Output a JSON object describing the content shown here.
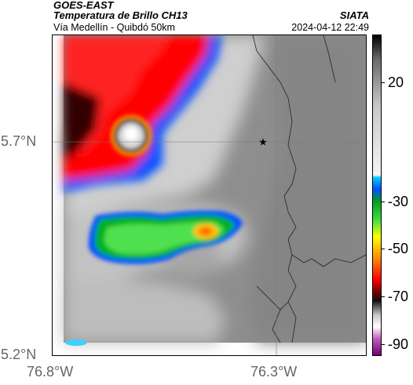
{
  "header": {
    "product": "GOES-EAST",
    "title": "Temperatura de Brillo CH13",
    "subtitle": "Vía Medellín - Quibdó 50km",
    "source": "SIATA",
    "timestamp": "2024-04-12 22:49"
  },
  "map": {
    "lon_range": [
      -76.8,
      -76.1
    ],
    "lat_range": [
      5.2,
      5.95
    ],
    "y_ticks": [
      {
        "label": "5.7°N",
        "lat": 5.7
      },
      {
        "label": "5.2°N",
        "lat": 5.2
      }
    ],
    "x_ticks": [
      {
        "label": "76.8°W",
        "lon": -76.8
      },
      {
        "label": "76.3°W",
        "lon": -76.3
      }
    ],
    "gridlines": [
      {
        "lon": -76.3
      },
      {
        "lat": 5.7
      }
    ],
    "marker": {
      "symbol": "★",
      "lon": -76.33,
      "lat": 5.7,
      "name": "star-marker"
    }
  },
  "colorbar": {
    "ticks": [
      {
        "label": "20",
        "value": 20
      },
      {
        "label": "-30",
        "value": -30
      },
      {
        "label": "-50",
        "value": -50
      },
      {
        "label": "-70",
        "value": -70
      },
      {
        "label": "-90",
        "value": -90
      }
    ],
    "range": [
      -95,
      40
    ],
    "gradient": [
      {
        "value": 40,
        "color": "#000000"
      },
      {
        "value": 30,
        "color": "#6a6a6a"
      },
      {
        "value": 10,
        "color": "#c8c8c8"
      },
      {
        "value": -19,
        "color": "#f5f5f5"
      },
      {
        "value": -20,
        "color": "#00d0ff"
      },
      {
        "value": -25,
        "color": "#0050ff"
      },
      {
        "value": -30,
        "color": "#00a020"
      },
      {
        "value": -38,
        "color": "#40e040"
      },
      {
        "value": -45,
        "color": "#ffff00"
      },
      {
        "value": -55,
        "color": "#ff8000"
      },
      {
        "value": -63,
        "color": "#ff0000"
      },
      {
        "value": -68,
        "color": "#800000"
      },
      {
        "value": -72,
        "color": "#101010"
      },
      {
        "value": -78,
        "color": "#c8c8c8"
      },
      {
        "value": -83,
        "color": "#ffffff"
      },
      {
        "value": -88,
        "color": "#c060c0"
      },
      {
        "value": -95,
        "color": "#700070"
      }
    ]
  }
}
